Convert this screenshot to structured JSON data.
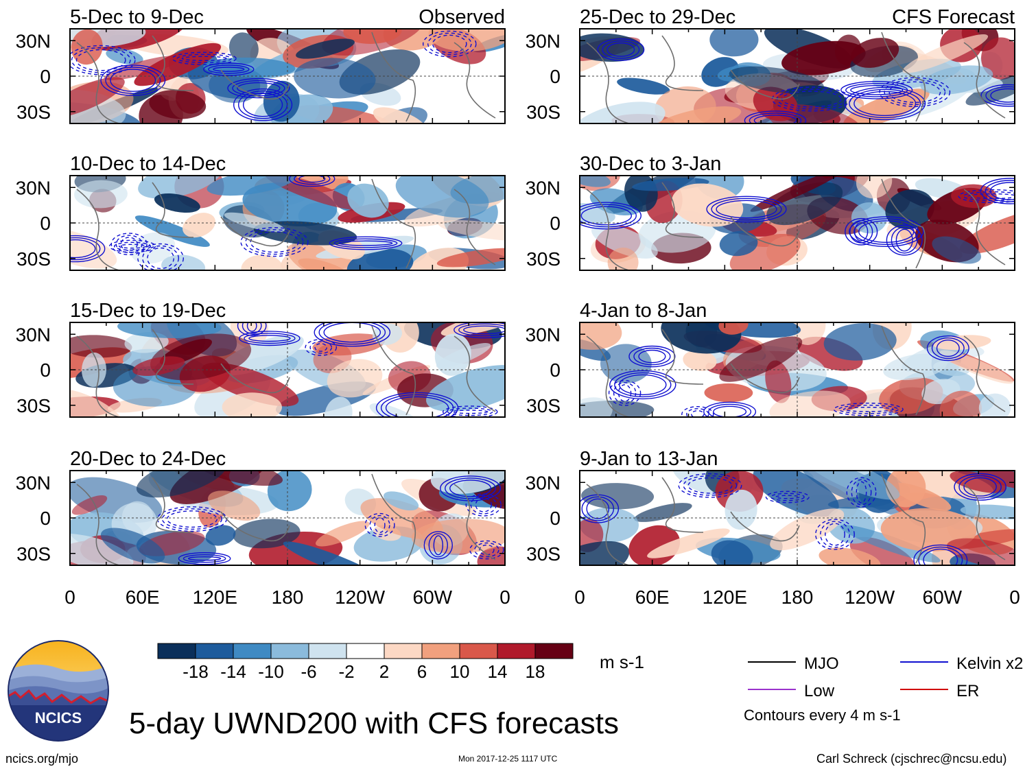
{
  "chart_data": {
    "type": "heatmap",
    "title": "5-day UWND200 with CFS forecasts",
    "columns": [
      {
        "label": "Observed",
        "panels": [
          "5-Dec to 9-Dec",
          "10-Dec to 14-Dec",
          "15-Dec to 19-Dec",
          "20-Dec to 24-Dec"
        ]
      },
      {
        "label": "CFS Forecast",
        "panels": [
          "25-Dec to 29-Dec",
          "30-Dec to 3-Jan",
          "4-Jan to 8-Jan",
          "9-Jan to 13-Jan"
        ]
      }
    ],
    "x_ticks": [
      "0",
      "60E",
      "120E",
      "180",
      "120W",
      "60W",
      "0"
    ],
    "y_ticks": [
      "30N",
      "0",
      "30S"
    ],
    "colorbar": {
      "units": "m s-1",
      "tick_labels": [
        "-18",
        "-14",
        "-10",
        "-6",
        "-2",
        "2",
        "6",
        "10",
        "14",
        "18"
      ],
      "colors": [
        "#0a2f5a",
        "#1d5b9c",
        "#3f8ac3",
        "#8bbbdc",
        "#cfe3ef",
        "#ffffff",
        "#fcd8c4",
        "#f1a07e",
        "#d9584a",
        "#b01a2b",
        "#660014"
      ]
    },
    "legend": [
      {
        "name": "MJO",
        "color": "#000000"
      },
      {
        "name": "Kelvin x2",
        "color": "#1010d0"
      },
      {
        "name": "Low",
        "color": "#9a32cd"
      },
      {
        "name": "ER",
        "color": "#d00000"
      }
    ],
    "contour_note": "Contours every 4 m s-1"
  },
  "footer": {
    "left": "ncics.org/mjo",
    "center": "Mon 2017-12-25 1117 UTC",
    "right": "Carl Schreck (cjschrec@ncsu.edu)"
  },
  "logo": {
    "text": "NCICS"
  }
}
